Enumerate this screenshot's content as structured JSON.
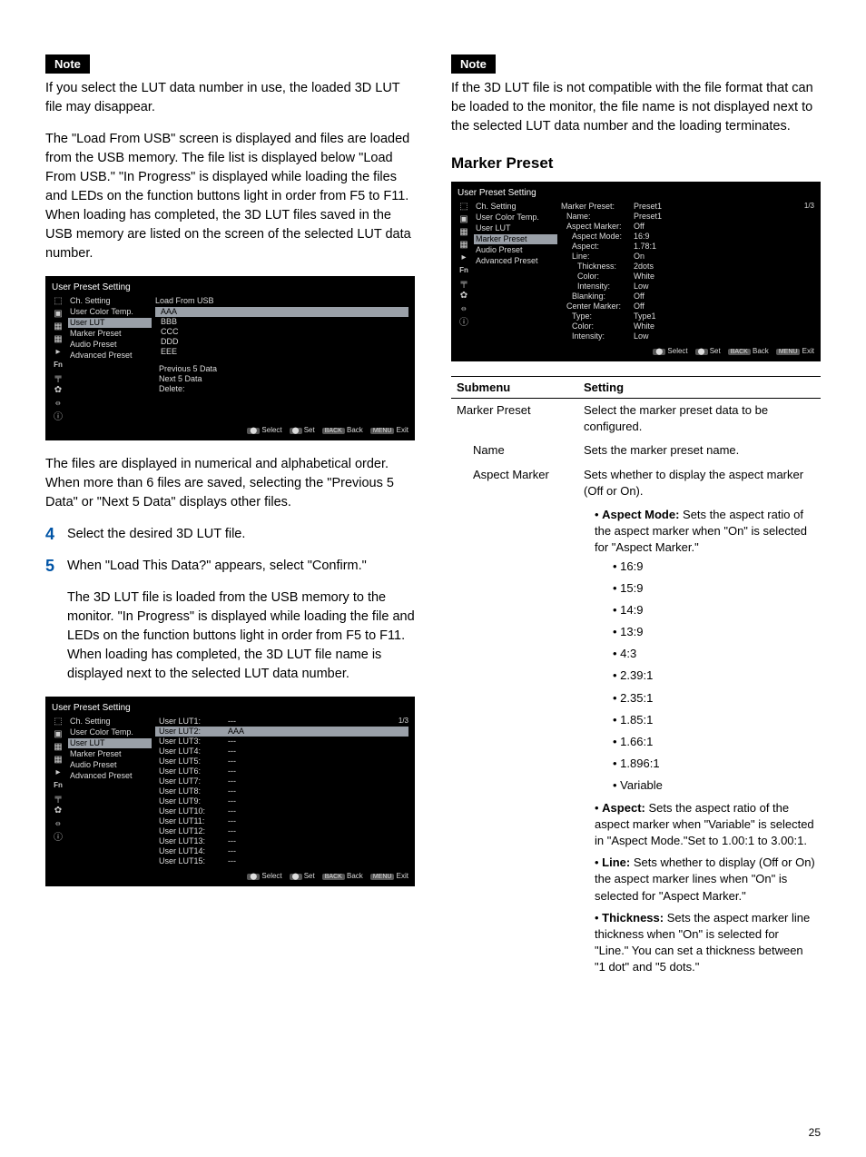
{
  "note_label": "Note",
  "page_number": "25",
  "left": {
    "note_text": "If you select the LUT data number in use, the loaded 3D LUT file may disappear.",
    "para1": "The \"Load From USB\" screen is displayed and files are loaded from the USB memory. The file list is displayed below \"Load From USB.\" \"In Progress\" is displayed while loading the files and LEDs on the function buttons light in order from F5 to F11.\nWhen loading has completed, the 3D LUT files saved in the USB memory are listed on the screen of the selected LUT data number.",
    "para2": "The files are displayed in numerical and alphabetical order. When more than 6 files are saved, selecting the \"Previous 5 Data\" or \"Next 5 Data\" displays other files.",
    "step4": "Select the desired 3D LUT file.",
    "step5": "When \"Load This Data?\" appears, select \"Confirm.\"",
    "step5_body": "The 3D LUT file is loaded from the USB memory to the monitor. \"In Progress\" is displayed while loading the file and LEDs on the function buttons light in order from F5 to F11.\nWhen loading has completed, the 3D LUT file name is displayed next to the selected LUT data number.",
    "monitor1": {
      "title": "User Preset Setting",
      "menu": [
        "Ch. Setting",
        "User Color Temp.",
        "User LUT",
        "Marker Preset",
        "Audio Preset",
        "Advanced Preset"
      ],
      "highlight_index": 2,
      "heading": "Load From USB",
      "rows": [
        {
          "label": "AAA",
          "hl": true
        },
        {
          "label": "BBB"
        },
        {
          "label": "CCC"
        },
        {
          "label": "DDD"
        },
        {
          "label": "EEE"
        }
      ],
      "extra": [
        "Previous 5 Data",
        "Next 5 Data",
        "",
        "Delete:"
      ],
      "footer": [
        "Select",
        "Set",
        "Back",
        "Exit"
      ]
    },
    "monitor2": {
      "title": "User Preset Setting",
      "page": "1/3",
      "menu": [
        "Ch. Setting",
        "User Color Temp.",
        "User LUT",
        "Marker Preset",
        "Audio Preset",
        "Advanced Preset"
      ],
      "highlight_index": 2,
      "rows": [
        {
          "label": "User LUT1:",
          "val": "---"
        },
        {
          "label": "User LUT2:",
          "val": "AAA",
          "hl": true
        },
        {
          "label": "User LUT3:",
          "val": "---"
        },
        {
          "label": "User LUT4:",
          "val": "---"
        },
        {
          "label": "User LUT5:",
          "val": "---"
        },
        {
          "label": "User LUT6:",
          "val": "---"
        },
        {
          "label": "User LUT7:",
          "val": "---"
        },
        {
          "label": "User LUT8:",
          "val": "---"
        },
        {
          "label": "User LUT9:",
          "val": "---"
        },
        {
          "label": "User LUT10:",
          "val": "---"
        },
        {
          "label": "User LUT11:",
          "val": "---"
        },
        {
          "label": "User LUT12:",
          "val": "---"
        },
        {
          "label": "User LUT13:",
          "val": "---"
        },
        {
          "label": "User LUT14:",
          "val": "---"
        },
        {
          "label": "User LUT15:",
          "val": "---"
        }
      ],
      "footer": [
        "Select",
        "Set",
        "Back",
        "Exit"
      ]
    }
  },
  "right": {
    "note_text": "If the 3D LUT file is not compatible with the file format that can be loaded to the monitor, the file name is not displayed next to the selected LUT data number and the loading terminates.",
    "section_heading": "Marker Preset",
    "monitor": {
      "title": "User Preset Setting",
      "page": "1/3",
      "menu": [
        "Ch. Setting",
        "User Color Temp.",
        "User LUT",
        "Marker Preset",
        "Audio Preset",
        "Advanced Preset"
      ],
      "highlight_index": 3,
      "rows": [
        {
          "label": "Marker Preset:",
          "val": "Preset1"
        },
        {
          "label": "Name:",
          "val": "Preset1",
          "indent": true
        },
        {
          "label": "Aspect Marker:",
          "val": "Off",
          "indent": true
        },
        {
          "label": "Aspect Mode:",
          "val": "16:9",
          "indent": true,
          "sub": true
        },
        {
          "label": "Aspect:",
          "val": "1.78:1",
          "indent": true,
          "sub": true
        },
        {
          "label": "Line:",
          "val": "On",
          "indent": true,
          "sub": true
        },
        {
          "label": "Thickness:",
          "val": "2dots",
          "indent": true,
          "sub": true,
          "sub2": true
        },
        {
          "label": "Color:",
          "val": "White",
          "indent": true,
          "sub": true,
          "sub2": true
        },
        {
          "label": "Intensity:",
          "val": "Low",
          "indent": true,
          "sub": true,
          "sub2": true
        },
        {
          "label": "Blanking:",
          "val": "Off",
          "indent": true,
          "sub": true
        },
        {
          "label": "Center Marker:",
          "val": "Off",
          "indent": true
        },
        {
          "label": "Type:",
          "val": "Type1",
          "indent": true,
          "sub": true
        },
        {
          "label": "Color:",
          "val": "White",
          "indent": true,
          "sub": true
        },
        {
          "label": "Intensity:",
          "val": "Low",
          "indent": true,
          "sub": true
        }
      ],
      "footer": [
        "Select",
        "Set",
        "Back",
        "Exit"
      ]
    },
    "table": {
      "headers": [
        "Submenu",
        "Setting"
      ],
      "rows": [
        {
          "submenu": "Marker Preset",
          "setting": "Select the marker preset data to be configured."
        },
        {
          "submenu": "Name",
          "indent": true,
          "setting": "Sets the marker preset name."
        },
        {
          "submenu": "Aspect Marker",
          "indent": true,
          "setting": "Sets whether to display the aspect marker (Off or On)."
        }
      ],
      "details": [
        {
          "bold": "Aspect Mode:",
          "text": " Sets the aspect ratio of the aspect marker when \"On\" is selected for \"Aspect Marker.\"",
          "sub": [
            "16:9",
            "15:9",
            "14:9",
            "13:9",
            "4:3",
            "2.39:1",
            "2.35:1",
            "1.85:1",
            "1.66:1",
            "1.896:1",
            "Variable"
          ]
        },
        {
          "bold": "Aspect:",
          "text": " Sets the aspect ratio of the aspect marker when \"Variable\" is selected in \"Aspect Mode.\"Set to 1.00:1 to 3.00:1."
        },
        {
          "bold": "Line:",
          "text": " Sets whether to display (Off or On) the aspect marker lines when \"On\" is selected for \"Aspect Marker.\""
        },
        {
          "bold": "Thickness:",
          "text": " Sets the aspect marker line thickness when \"On\" is selected for \"Line.\" You can set a thickness between \"1 dot\" and \"5 dots.\""
        }
      ]
    }
  }
}
